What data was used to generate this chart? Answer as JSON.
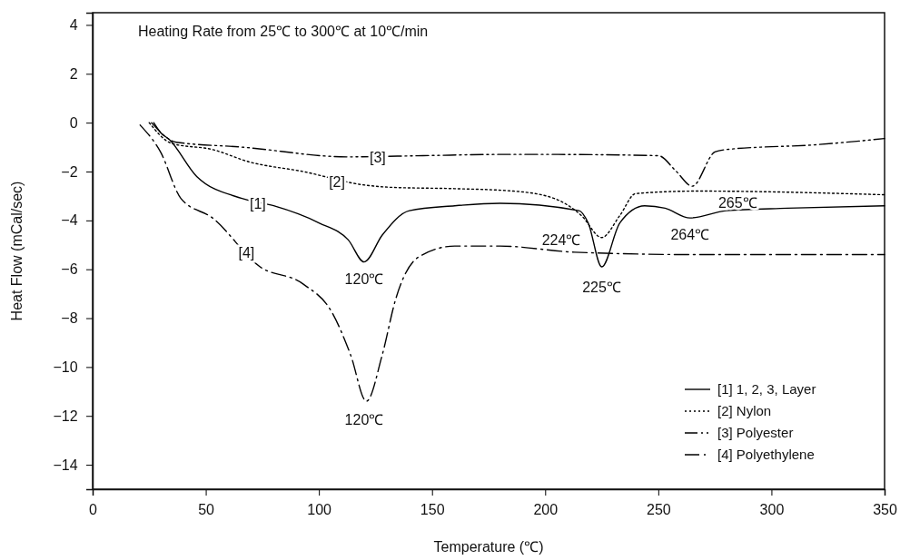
{
  "chart_data": {
    "type": "line",
    "xlabel": "Temperature (℃)",
    "ylabel": "Heat Flow (mCal/sec)",
    "xlim": [
      0,
      350
    ],
    "xticks": [
      0,
      50,
      100,
      150,
      200,
      250,
      300,
      350
    ],
    "ylim": [
      -15,
      4.5
    ],
    "yticks": [
      4,
      2,
      0,
      -2,
      -4,
      -6,
      -8,
      -10,
      -12,
      -14
    ],
    "grid": false,
    "legend": "bottom right",
    "marker": "none",
    "series": [
      {
        "name": "[1] 1, 2, 3, Layer",
        "color": "#000000",
        "line_style": "solid",
        "x": [
          27,
          30,
          34,
          46,
          66,
          80,
          100,
          113,
          120,
          128,
          140,
          160,
          180,
          215,
          219,
          225,
          233,
          244,
          253,
          264,
          280,
          307,
          350
        ],
        "values": [
          0,
          -0.4,
          -0.7,
          -2.2,
          -3.1,
          -3.4,
          -4.1,
          -4.8,
          -5.7,
          -4.6,
          -3.6,
          -3.4,
          -3.3,
          -3.6,
          -4.1,
          -5.9,
          -4.1,
          -3.4,
          -3.5,
          -3.9,
          -3.6,
          -3.5,
          -3.4
        ]
      },
      {
        "name": "[2] Nylon",
        "color": "#000000",
        "line_style": "dotted",
        "x": [
          25,
          35,
          53,
          69,
          93,
          120,
          133,
          160,
          186,
          204,
          216,
          225,
          233,
          240,
          267,
          350
        ],
        "values": [
          0,
          -0.85,
          -1.1,
          -1.6,
          -2,
          -2.55,
          -2.65,
          -2.7,
          -2.8,
          -3.1,
          -3.8,
          -4.7,
          -3.8,
          -2.9,
          -2.8,
          -2.95
        ]
      },
      {
        "name": "[3] Polyester",
        "color": "#000000",
        "line_style": "dashed",
        "x": [
          26,
          37,
          66,
          113,
          146,
          180,
          200,
          250,
          258,
          265,
          275,
          280,
          320,
          350
        ],
        "values": [
          0,
          -0.8,
          -1,
          -1.4,
          -1.35,
          -1.3,
          -1.3,
          -1.35,
          -2,
          -2.6,
          -1.2,
          -1.1,
          -0.9,
          -0.65
        ]
      },
      {
        "name": "[4] Polyethylene",
        "color": "#000000",
        "line_style": "dashed",
        "x": [
          21,
          30,
          39,
          53,
          74,
          93,
          106,
          114,
          121,
          128,
          134,
          144,
          160,
          180,
          213,
          267,
          350
        ],
        "values": [
          -0.1,
          -1.2,
          -3.1,
          -3.9,
          -5.9,
          -6.6,
          -7.8,
          -9.5,
          -11.4,
          -9.5,
          -7.2,
          -5.5,
          -5.05,
          -5.05,
          -5.3,
          -5.4,
          -5.4
        ]
      }
    ],
    "annotations": [
      "Heating Rate from 25℃ to 300℃ at 10℃/min",
      {
        "text": "[1]",
        "x": 73,
        "y": -3.3
      },
      {
        "text": "[2]",
        "x": 108,
        "y": -2.4
      },
      {
        "text": "[3]",
        "x": 126,
        "y": -1.4
      },
      {
        "text": "[4]",
        "x": 68,
        "y": -5.3
      },
      {
        "text": "120℃",
        "x": 120,
        "y": -5.7
      },
      {
        "text": "120℃",
        "x": 120,
        "y": -11.4
      },
      {
        "text": "224℃",
        "x": 224,
        "y": -4.7
      },
      {
        "text": "225℃",
        "x": 225,
        "y": -5.9
      },
      {
        "text": "264℃",
        "x": 264,
        "y": -3.9
      },
      {
        "text": "265℃",
        "x": 265,
        "y": -2.6
      }
    ]
  }
}
